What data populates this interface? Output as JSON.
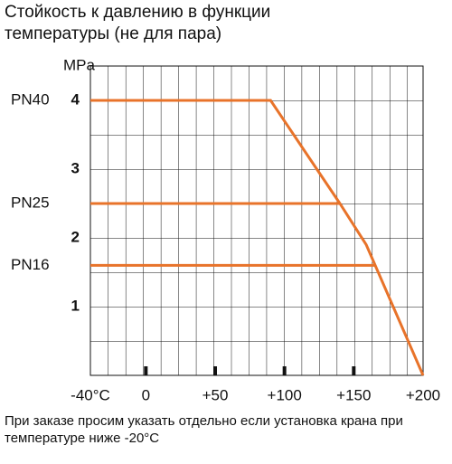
{
  "chart_data": {
    "type": "line",
    "title": "Стойкость к давлению в функции температуры (не для пара)",
    "y_label": "MPa",
    "note": "При заказе просим указать отдельно если установка крана при температуре ниже -20°C",
    "xlim": [
      -40,
      200
    ],
    "xticks": [
      {
        "value": -40,
        "label": "-40°C"
      },
      0,
      {
        "value": 50,
        "label": "+50"
      },
      {
        "value": 100,
        "label": "+100"
      },
      {
        "value": 150,
        "label": "+150"
      },
      {
        "value": 200,
        "label": "+200"
      }
    ],
    "ylim": [
      0,
      4.5
    ],
    "yticks": [
      1,
      2,
      3,
      4
    ],
    "grid": true,
    "series": [
      {
        "name": "PN40",
        "color": "#e8732a",
        "x": [
          -40,
          90,
          140,
          159,
          200
        ],
        "values": [
          4,
          4,
          2.5,
          1.9,
          0
        ]
      },
      {
        "name": "PN25",
        "color": "#e8732a",
        "x": [
          -40,
          140
        ],
        "values": [
          2.5,
          2.5
        ]
      },
      {
        "name": "PN16",
        "color": "#e8732a",
        "x": [
          -40,
          165
        ],
        "values": [
          1.6,
          1.6
        ]
      }
    ]
  }
}
